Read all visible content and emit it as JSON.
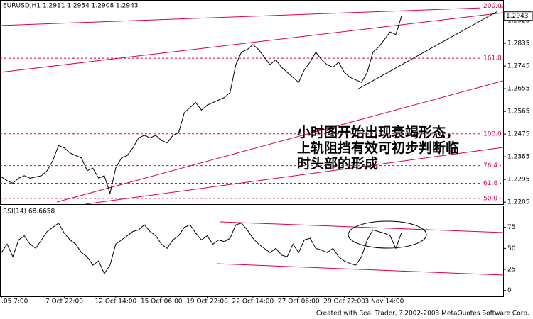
{
  "chart_data": [
    {
      "type": "line",
      "title": "EURUSD,H1 1.2911 1.2954 1.2908 1.2943",
      "categories": [
        ".05 7:00",
        null,
        null,
        null,
        null,
        null,
        null,
        null,
        null,
        null,
        null,
        "7 Oct 22:00",
        null,
        null,
        null,
        null,
        null,
        null,
        null,
        null,
        "12 Oct 14:00",
        null,
        null,
        null,
        null,
        null,
        null,
        null,
        "15 Oct 06:00",
        null,
        null,
        null,
        null,
        null,
        null,
        null,
        "19 Oct 22:00",
        null,
        null,
        null,
        null,
        null,
        null,
        null,
        "22 Oct 14:00",
        null,
        null,
        null,
        null,
        null,
        null,
        null,
        "27 Oct 06:00",
        null,
        null,
        null,
        null,
        null,
        null,
        null,
        "29 Oct 22:00",
        null,
        null,
        null,
        null,
        null,
        null,
        "3 Nov 14:00",
        null,
        null,
        null
      ],
      "series": [
        {
          "color": "#000000",
          "values": [
            1.2305,
            1.229,
            1.228,
            1.23,
            1.231,
            1.23,
            1.2305,
            1.231,
            1.233,
            1.237,
            1.243,
            1.242,
            1.24,
            1.239,
            1.238,
            1.233,
            1.234,
            1.23,
            1.231,
            1.224,
            1.234,
            1.238,
            1.239,
            1.242,
            1.246,
            1.247,
            1.246,
            1.247,
            1.245,
            1.244,
            1.247,
            1.248,
            1.256,
            1.258,
            1.26,
            1.257,
            1.259,
            1.26,
            1.261,
            1.262,
            1.264,
            1.275,
            1.28,
            1.281,
            1.283,
            1.281,
            1.278,
            1.275,
            1.277,
            1.274,
            1.272,
            1.27,
            1.268,
            1.273,
            1.276,
            1.28,
            1.277,
            1.275,
            1.274,
            1.276,
            1.272,
            1.27,
            1.269,
            1.268,
            1.272,
            1.28,
            1.282,
            1.285,
            1.288,
            1.287,
            1.2943
          ]
        }
      ],
      "last_price": 1.2943,
      "ylim": [
        1.2197,
        1.3004
      ],
      "yticks": [
        1.2925,
        1.2835,
        1.2745,
        1.2655,
        1.2565,
        1.2475,
        1.2385,
        1.2295,
        1.2205
      ],
      "fib_levels": [
        {
          "label": "200.0",
          "price": 1.2983
        },
        {
          "label": "161.8",
          "price": 1.2776
        },
        {
          "label": "100.0",
          "price": 1.2476
        },
        {
          "label": "76.4",
          "price": 1.235
        },
        {
          "label": "61.8",
          "price": 1.228
        },
        {
          "label": "50.0",
          "price": 1.222
        }
      ],
      "annotation": [
        "小时图开始出现衰竭形态，",
        "上轨阻挡有效可初步判断临",
        "时头部的形成"
      ]
    },
    {
      "type": "line",
      "title": "RSI(14) 68.6658",
      "series": [
        {
          "color": "#000000",
          "values": [
            45,
            55,
            40,
            60,
            65,
            55,
            50,
            60,
            70,
            75,
            80,
            68,
            60,
            55,
            45,
            40,
            30,
            35,
            20,
            30,
            55,
            60,
            65,
            70,
            72,
            78,
            70,
            65,
            55,
            50,
            60,
            65,
            75,
            78,
            68,
            60,
            65,
            55,
            60,
            58,
            62,
            78,
            80,
            72,
            62,
            55,
            50,
            45,
            50,
            42,
            40,
            55,
            45,
            60,
            62,
            50,
            48,
            45,
            50,
            40,
            35,
            32,
            30,
            40,
            60,
            72,
            70,
            68,
            65,
            50,
            68.6658
          ]
        }
      ],
      "ylim": [
        -7,
        100
      ],
      "yticks": [
        0,
        25,
        50,
        75
      ]
    }
  ],
  "footer": "Created with Real Trader, ? 2002-2003 MetaQuotes Software Corp."
}
